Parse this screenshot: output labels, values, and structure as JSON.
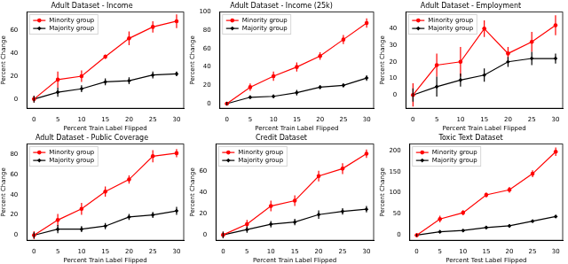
{
  "chart_data": [
    {
      "type": "line",
      "title": "Adult Dataset - Income",
      "x_label": "Percent Train Label Flipped",
      "y_label": "Percent Change",
      "x": [
        0,
        5,
        10,
        15,
        20,
        25,
        30
      ],
      "xlim": [
        -1.5,
        31.5
      ],
      "xticks": [
        0,
        5,
        10,
        15,
        20,
        25,
        30
      ],
      "ylim": [
        -8,
        76
      ],
      "yticks": [
        0,
        20,
        40,
        60
      ],
      "grid": false,
      "legend": "upper left",
      "series": [
        {
          "name": "Minority group",
          "color": "#ff0000",
          "marker": "circle",
          "values": [
            0,
            17,
            20,
            37,
            53,
            63,
            68
          ],
          "errors": [
            3,
            7,
            5,
            2,
            6,
            5,
            6
          ]
        },
        {
          "name": "Majority group",
          "color": "#000000",
          "marker": "diamond",
          "values": [
            0,
            6,
            9,
            15,
            16,
            21,
            22
          ],
          "errors": [
            3,
            4,
            3,
            3,
            3,
            3,
            2
          ]
        }
      ]
    },
    {
      "type": "line",
      "title": "Adult Dataset - Income (25k)",
      "x_label": "Percent Train Label Flipped",
      "y_label": "Percent Change",
      "x": [
        0,
        5,
        10,
        15,
        20,
        25,
        30
      ],
      "xlim": [
        -1.5,
        31.5
      ],
      "xticks": [
        0,
        5,
        10,
        15,
        20,
        25,
        30
      ],
      "ylim": [
        -5,
        100
      ],
      "yticks": [
        0,
        20,
        40,
        60,
        80,
        100
      ],
      "grid": false,
      "legend": "upper left",
      "series": [
        {
          "name": "Minority group",
          "color": "#ff0000",
          "marker": "circle",
          "values": [
            0,
            18,
            30,
            40,
            52,
            70,
            88
          ],
          "errors": [
            2,
            4,
            5,
            5,
            4,
            5,
            5
          ]
        },
        {
          "name": "Majority group",
          "color": "#000000",
          "marker": "diamond",
          "values": [
            0,
            7,
            8,
            12,
            18,
            20,
            28
          ],
          "errors": [
            2,
            2,
            2,
            3,
            2,
            2,
            3
          ]
        }
      ]
    },
    {
      "type": "line",
      "title": "Adult Dataset - Employment",
      "x_label": "Percent Train Label Flipped",
      "y_label": "Percent Change",
      "x": [
        0,
        5,
        10,
        15,
        20,
        25,
        30
      ],
      "xlim": [
        -1.5,
        31.5
      ],
      "xticks": [
        0,
        5,
        10,
        15,
        20,
        25,
        30
      ],
      "ylim": [
        -8,
        50
      ],
      "yticks": [
        0,
        10,
        20,
        30,
        40
      ],
      "grid": false,
      "legend": "upper left",
      "series": [
        {
          "name": "Minority group",
          "color": "#ff0000",
          "marker": "circle",
          "values": [
            0,
            18,
            20,
            40,
            25,
            32,
            42
          ],
          "errors": [
            7,
            7,
            9,
            5,
            4,
            6,
            6
          ]
        },
        {
          "name": "Majority group",
          "color": "#000000",
          "marker": "diamond",
          "values": [
            0,
            5,
            9,
            12,
            20,
            22,
            22
          ],
          "errors": [
            4,
            6,
            4,
            4,
            3,
            4,
            3
          ]
        }
      ]
    },
    {
      "type": "line",
      "title": "Adult Dataset - Public Coverage",
      "x_label": "Percent Train Label Flipped",
      "y_label": "Percent Change",
      "x": [
        0,
        5,
        10,
        15,
        20,
        25,
        30
      ],
      "xlim": [
        -1.5,
        31.5
      ],
      "xticks": [
        0,
        5,
        10,
        15,
        20,
        25,
        30
      ],
      "ylim": [
        -5,
        90
      ],
      "yticks": [
        0,
        20,
        40,
        60,
        80
      ],
      "grid": false,
      "legend": "upper left",
      "series": [
        {
          "name": "Minority group",
          "color": "#ff0000",
          "marker": "circle",
          "values": [
            0,
            15,
            26,
            43,
            55,
            78,
            81
          ],
          "errors": [
            4,
            6,
            6,
            5,
            4,
            6,
            4
          ]
        },
        {
          "name": "Majority group",
          "color": "#000000",
          "marker": "diamond",
          "values": [
            0,
            6,
            6,
            9,
            18,
            20,
            24
          ],
          "errors": [
            3,
            4,
            3,
            3,
            3,
            3,
            4
          ]
        }
      ]
    },
    {
      "type": "line",
      "title": "Credit Dataset",
      "x_label": "Percent Train Label Flipped",
      "y_label": "Percent Change",
      "x": [
        0,
        5,
        10,
        15,
        20,
        25,
        30
      ],
      "xlim": [
        -1.5,
        31.5
      ],
      "xticks": [
        0,
        5,
        10,
        15,
        20,
        25,
        30
      ],
      "ylim": [
        -5,
        85
      ],
      "yticks": [
        0,
        20,
        40,
        60
      ],
      "grid": false,
      "legend": "upper left",
      "series": [
        {
          "name": "Minority group",
          "color": "#ff0000",
          "marker": "circle",
          "values": [
            0,
            10,
            27,
            32,
            55,
            62,
            76
          ],
          "errors": [
            3,
            4,
            5,
            5,
            5,
            5,
            4
          ]
        },
        {
          "name": "Majority group",
          "color": "#000000",
          "marker": "diamond",
          "values": [
            0,
            5,
            10,
            12,
            19,
            22,
            24
          ],
          "errors": [
            3,
            3,
            3,
            3,
            4,
            3,
            3
          ]
        }
      ]
    },
    {
      "type": "line",
      "title": "Toxic Text Dataset",
      "x_label": "Percent Test Label Flipped",
      "y_label": "Percent Change",
      "x": [
        0,
        5,
        10,
        15,
        20,
        25,
        30
      ],
      "xlim": [
        -1.5,
        31.5
      ],
      "xticks": [
        0,
        5,
        10,
        15,
        20,
        25,
        30
      ],
      "ylim": [
        -12,
        215
      ],
      "yticks": [
        0,
        50,
        100,
        150,
        200
      ],
      "grid": false,
      "legend": "upper left",
      "series": [
        {
          "name": "Minority group",
          "color": "#ff0000",
          "marker": "circle",
          "values": [
            0,
            38,
            53,
            95,
            107,
            145,
            197
          ],
          "errors": [
            5,
            8,
            6,
            6,
            7,
            8,
            10
          ]
        },
        {
          "name": "Majority group",
          "color": "#000000",
          "marker": "diamond",
          "values": [
            0,
            8,
            11,
            18,
            22,
            33,
            44
          ],
          "errors": [
            3,
            3,
            3,
            3,
            4,
            3,
            3
          ]
        }
      ]
    }
  ]
}
